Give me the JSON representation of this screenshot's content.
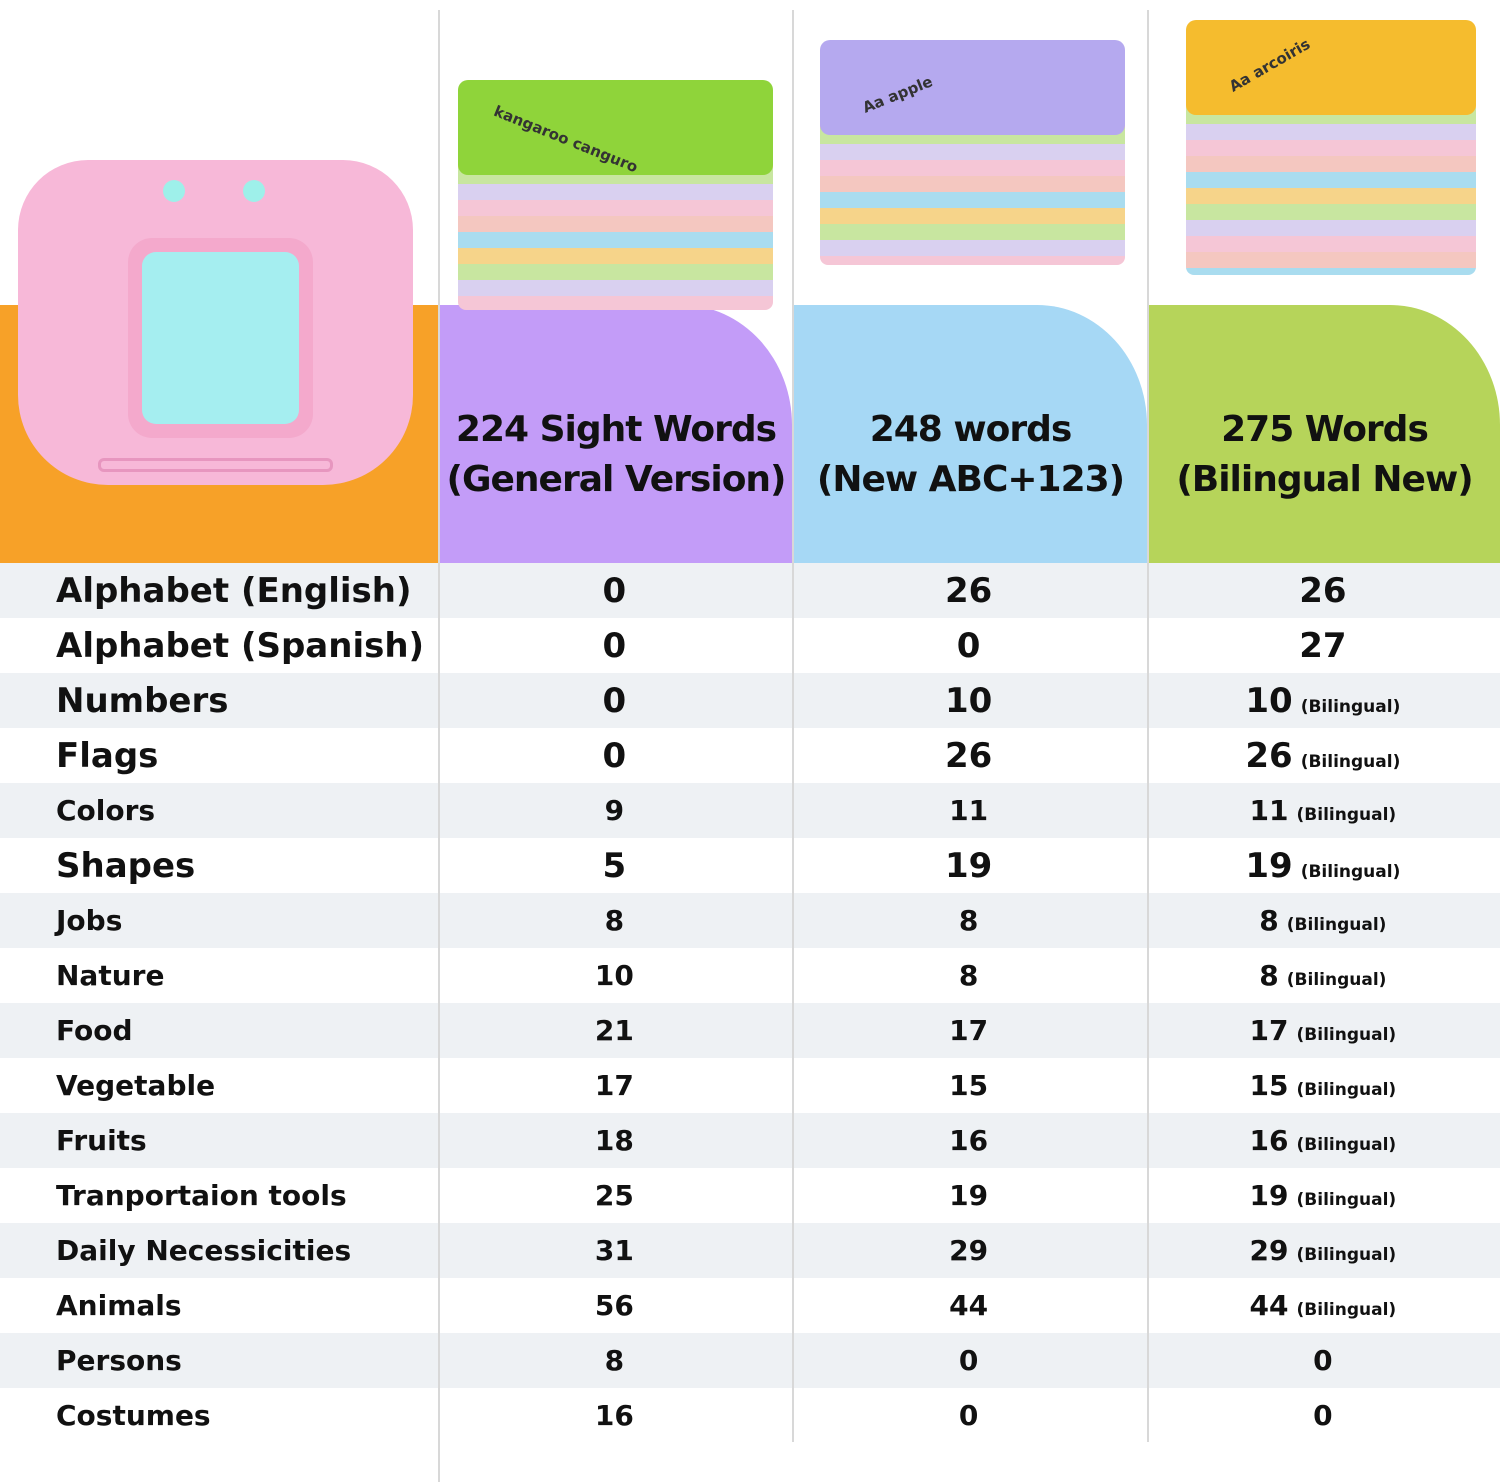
{
  "colors": {
    "orange": "#f7a128",
    "purple": "#c39cf8",
    "blue": "#a6d8f5",
    "green": "#b6d45a",
    "stripe": "#eef1f4"
  },
  "products": [
    {
      "title_line1": "224 Sight Words",
      "title_line2": "(General Version)",
      "card_word": "kangaroo canguro"
    },
    {
      "title_line1": "248 words",
      "title_line2": "(New ABC+123)",
      "card_word": "Aa apple"
    },
    {
      "title_line1": "275 Words",
      "title_line2": "(Bilingual New)",
      "card_word": "Aa arcoiris"
    }
  ],
  "rows": [
    {
      "label": "Alphabet (English)",
      "values": [
        {
          "v": "0"
        },
        {
          "v": "26"
        },
        {
          "v": "26"
        }
      ]
    },
    {
      "label": "Alphabet (Spanish)",
      "values": [
        {
          "v": "0"
        },
        {
          "v": "0"
        },
        {
          "v": "27"
        }
      ]
    },
    {
      "label": "Numbers",
      "values": [
        {
          "v": "0"
        },
        {
          "v": "10"
        },
        {
          "v": "10",
          "note": "(Bilingual)"
        }
      ]
    },
    {
      "label": "Flags",
      "values": [
        {
          "v": "0"
        },
        {
          "v": "26"
        },
        {
          "v": "26",
          "note": "(Bilingual)"
        }
      ]
    },
    {
      "label": "Colors",
      "values": [
        {
          "v": "9"
        },
        {
          "v": "11"
        },
        {
          "v": "11",
          "note": "(Bilingual)"
        }
      ]
    },
    {
      "label": "Shapes",
      "values": [
        {
          "v": "5"
        },
        {
          "v": "19"
        },
        {
          "v": "19",
          "note": "(Bilingual)"
        }
      ]
    },
    {
      "label": "Jobs",
      "values": [
        {
          "v": "8"
        },
        {
          "v": "8"
        },
        {
          "v": "8",
          "note": "(Bilingual)"
        }
      ]
    },
    {
      "label": "Nature",
      "values": [
        {
          "v": "10"
        },
        {
          "v": "8"
        },
        {
          "v": "8",
          "note": "(Bilingual)"
        }
      ]
    },
    {
      "label": "Food",
      "values": [
        {
          "v": "21"
        },
        {
          "v": "17"
        },
        {
          "v": "17",
          "note": "(Bilingual)"
        }
      ]
    },
    {
      "label": "Vegetable",
      "values": [
        {
          "v": "17"
        },
        {
          "v": "15"
        },
        {
          "v": "15",
          "note": "(Bilingual)"
        }
      ]
    },
    {
      "label": "Fruits",
      "values": [
        {
          "v": "18"
        },
        {
          "v": "16"
        },
        {
          "v": "16",
          "note": "(Bilingual)"
        }
      ]
    },
    {
      "label": "Tranportaion tools",
      "values": [
        {
          "v": "25"
        },
        {
          "v": "19"
        },
        {
          "v": "19",
          "note": "(Bilingual)"
        }
      ]
    },
    {
      "label": "Daily Necessicities",
      "values": [
        {
          "v": "31"
        },
        {
          "v": "29"
        },
        {
          "v": "29",
          "note": "(Bilingual)"
        }
      ]
    },
    {
      "label": "Animals",
      "values": [
        {
          "v": "56"
        },
        {
          "v": "44"
        },
        {
          "v": "44",
          "note": "(Bilingual)"
        }
      ]
    },
    {
      "label": "Persons",
      "values": [
        {
          "v": "8"
        },
        {
          "v": "0"
        },
        {
          "v": "0"
        }
      ]
    },
    {
      "label": "Costumes",
      "values": [
        {
          "v": "16"
        },
        {
          "v": "0"
        },
        {
          "v": "0"
        }
      ]
    }
  ]
}
